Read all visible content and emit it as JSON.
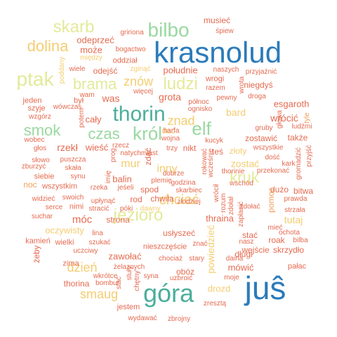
{
  "palette": {
    "blue": "#2b7bba",
    "teal": "#4cae9b",
    "green": "#9ad8a1",
    "yellow": "#e3ea9a",
    "gold": "#f4cd72",
    "orange": "#f1a05c",
    "red": "#e56a4f"
  },
  "words": [
    {
      "text": "krasnolud",
      "color": "blue"
    },
    {
      "text": "juŝ",
      "color": "blue"
    },
    {
      "text": "góra",
      "color": "teal"
    },
    {
      "text": "thorin",
      "color": "teal"
    },
    {
      "text": "bilbo",
      "color": "green"
    },
    {
      "text": "elf",
      "color": "green"
    },
    {
      "text": "król",
      "color": "green"
    },
    {
      "text": "czas",
      "color": "green"
    },
    {
      "text": "smok",
      "color": "green"
    },
    {
      "text": "skarb",
      "color": "yellow"
    },
    {
      "text": "ptak",
      "color": "yellow"
    },
    {
      "text": "brama",
      "color": "yellow"
    },
    {
      "text": "ludzi",
      "color": "yellow"
    },
    {
      "text": "jezioro",
      "color": "yellow"
    },
    {
      "text": "kruk",
      "color": "yellow"
    },
    {
      "text": "dolina",
      "color": "gold"
    },
    {
      "text": "znów",
      "color": "gold"
    },
    {
      "text": "chcieć",
      "color": "gold"
    },
    {
      "text": "znad",
      "color": "gold"
    },
    {
      "text": "mur",
      "color": "gold"
    },
    {
      "text": "inny",
      "color": "gold"
    },
    {
      "text": "dzień",
      "color": "gold"
    },
    {
      "text": "smaug",
      "color": "gold"
    },
    {
      "text": "bard",
      "color": "gold"
    },
    {
      "text": "zostać",
      "color": "gold"
    },
    {
      "text": "tutaj",
      "color": "gold"
    },
    {
      "text": "oczywisty",
      "color": "gold"
    },
    {
      "text": "złoty",
      "color": "gold"
    },
    {
      "text": "dawny",
      "color": "gold"
    },
    {
      "text": "powiedzieć",
      "color": "gold"
    },
    {
      "text": "dać",
      "color": "gold"
    },
    {
      "text": "musieć",
      "color": "red"
    },
    {
      "text": "śpiew",
      "color": "red"
    },
    {
      "text": "odeprzeć",
      "color": "red"
    },
    {
      "text": "gririona",
      "color": "red"
    },
    {
      "text": "może",
      "color": "red"
    },
    {
      "text": "bogactwo",
      "color": "red"
    },
    {
      "text": "między",
      "color": "gold"
    },
    {
      "text": "wiele",
      "color": "red"
    },
    {
      "text": "odejść",
      "color": "red"
    },
    {
      "text": "oddział",
      "color": "red"
    },
    {
      "text": "zginąć",
      "color": "gold"
    },
    {
      "text": "południe",
      "color": "red"
    },
    {
      "text": "naszych",
      "color": "red"
    },
    {
      "text": "przyjaźnić",
      "color": "red"
    },
    {
      "text": "wrogi",
      "color": "red"
    },
    {
      "text": "razem",
      "color": "red"
    },
    {
      "text": "niegdyś",
      "color": "red"
    },
    {
      "text": "droga",
      "color": "red"
    },
    {
      "text": "poddany",
      "color": "gold"
    },
    {
      "text": "wam",
      "color": "red"
    },
    {
      "text": "więcej",
      "color": "red"
    },
    {
      "text": "jeden",
      "color": "red"
    },
    {
      "text": "był",
      "color": "red"
    },
    {
      "text": "was",
      "color": "red"
    },
    {
      "text": "grota",
      "color": "red"
    },
    {
      "text": "północ",
      "color": "red"
    },
    {
      "text": "pewny",
      "color": "red"
    },
    {
      "text": "ognisko",
      "color": "red"
    },
    {
      "text": "esgaroth",
      "color": "red"
    },
    {
      "text": "szyje",
      "color": "red"
    },
    {
      "text": "wówczas",
      "color": "red"
    },
    {
      "text": "wzgórz",
      "color": "red"
    },
    {
      "text": "potem",
      "color": "red"
    },
    {
      "text": "cały",
      "color": "red"
    },
    {
      "text": "wrócić",
      "color": "red"
    },
    {
      "text": "gruby",
      "color": "red"
    },
    {
      "text": "ludźmi",
      "color": "red"
    },
    {
      "text": "harfa",
      "color": "red"
    },
    {
      "text": "kucyk",
      "color": "red"
    },
    {
      "text": "zostawić",
      "color": "red"
    },
    {
      "text": "także",
      "color": "red"
    },
    {
      "text": "tyle",
      "color": "orange"
    },
    {
      "text": "wobec",
      "color": "red"
    },
    {
      "text": "rzekł",
      "color": "red"
    },
    {
      "text": "wieść",
      "color": "red"
    },
    {
      "text": "wojna",
      "color": "red"
    },
    {
      "text": "nikt",
      "color": "red"
    },
    {
      "text": "teś",
      "color": "red"
    },
    {
      "text": "wszystkie",
      "color": "red"
    },
    {
      "text": "głos",
      "color": "red"
    },
    {
      "text": "natychmiast",
      "color": "red"
    },
    {
      "text": "trzy",
      "color": "red"
    },
    {
      "text": "dość",
      "color": "red"
    },
    {
      "text": "kark",
      "color": "red"
    },
    {
      "text": "słowo",
      "color": "red"
    },
    {
      "text": "puszcza",
      "color": "red"
    },
    {
      "text": "przekonać",
      "color": "red"
    },
    {
      "text": "zburzyć",
      "color": "red"
    },
    {
      "text": "skała",
      "color": "red"
    },
    {
      "text": "siebie",
      "color": "red"
    },
    {
      "text": "synu",
      "color": "red"
    },
    {
      "text": "dobrze",
      "color": "red"
    },
    {
      "text": "thorinie",
      "color": "red"
    },
    {
      "text": "noc",
      "color": "orange"
    },
    {
      "text": "wszystkim",
      "color": "red"
    },
    {
      "text": "rzeka",
      "color": "red"
    },
    {
      "text": "jeśeli",
      "color": "red"
    },
    {
      "text": "balin",
      "color": "red"
    },
    {
      "text": "spod",
      "color": "red"
    },
    {
      "text": "plemię",
      "color": "red"
    },
    {
      "text": "godzina",
      "color": "red"
    },
    {
      "text": "wschód",
      "color": "red"
    },
    {
      "text": "dużo",
      "color": "red"
    },
    {
      "text": "bitwa",
      "color": "red"
    },
    {
      "text": "widzieć",
      "color": "red"
    },
    {
      "text": "swoich",
      "color": "red"
    },
    {
      "text": "rod",
      "color": "red"
    },
    {
      "text": "chwila",
      "color": "red"
    },
    {
      "text": "złodziej",
      "color": "red"
    },
    {
      "text": "skarbiec",
      "color": "red"
    },
    {
      "text": "zdołać",
      "color": "red"
    },
    {
      "text": "prawda",
      "color": "red"
    },
    {
      "text": "serce",
      "color": "red"
    },
    {
      "text": "nimi",
      "color": "red"
    },
    {
      "text": "stracić",
      "color": "red"
    },
    {
      "text": "póki",
      "color": "red"
    },
    {
      "text": "suchar",
      "color": "red"
    },
    {
      "text": "móc",
      "color": "red"
    },
    {
      "text": "strona",
      "color": "red"
    },
    {
      "text": "thraina",
      "color": "red"
    },
    {
      "text": "pomoc",
      "color": "orange"
    },
    {
      "text": "strzała",
      "color": "red"
    },
    {
      "text": "ochota",
      "color": "red"
    },
    {
      "text": "lina",
      "color": "red"
    },
    {
      "text": "usłyszeć",
      "color": "red"
    },
    {
      "text": "mieć",
      "color": "red"
    },
    {
      "text": "stać",
      "color": "red"
    },
    {
      "text": "kamień",
      "color": "red"
    },
    {
      "text": "wielki",
      "color": "red"
    },
    {
      "text": "szukać",
      "color": "red"
    },
    {
      "text": "roak",
      "color": "red"
    },
    {
      "text": "bilba",
      "color": "red"
    },
    {
      "text": "uczciwy",
      "color": "red"
    },
    {
      "text": "nieszczęście",
      "color": "red"
    },
    {
      "text": "znać",
      "color": "red"
    },
    {
      "text": "nasz",
      "color": "red"
    },
    {
      "text": "wejście",
      "color": "red"
    },
    {
      "text": "skrzydło",
      "color": "red"
    },
    {
      "text": "zawołać",
      "color": "red"
    },
    {
      "text": "chociaż",
      "color": "red"
    },
    {
      "text": "stary",
      "color": "red"
    },
    {
      "text": "długi",
      "color": "red"
    },
    {
      "text": "zima",
      "color": "red"
    },
    {
      "text": "żelaznych",
      "color": "red"
    },
    {
      "text": "obóz",
      "color": "red"
    },
    {
      "text": "mówić",
      "color": "red"
    },
    {
      "text": "pałac",
      "color": "red"
    },
    {
      "text": "daina",
      "color": "red"
    },
    {
      "text": "wkrótce",
      "color": "red"
    },
    {
      "text": "syna",
      "color": "red"
    },
    {
      "text": "uzbroić",
      "color": "red"
    },
    {
      "text": "moje",
      "color": "red"
    },
    {
      "text": "thorina",
      "color": "red"
    },
    {
      "text": "bombur",
      "color": "red"
    },
    {
      "text": "drozd",
      "color": "gold"
    },
    {
      "text": "jestem",
      "color": "red"
    },
    {
      "text": "zresztą",
      "color": "red"
    },
    {
      "text": "wydawać",
      "color": "red"
    },
    {
      "text": "zbrojny",
      "color": "red"
    },
    {
      "text": "żeby",
      "color": "red"
    },
    {
      "text": "upłynąć",
      "color": "red"
    },
    {
      "text": "wcześnie",
      "color": "red"
    },
    {
      "text": "zdołał",
      "color": "red"
    },
    {
      "text": "rozum",
      "color": "red"
    },
    {
      "text": "głowa",
      "color": "red"
    },
    {
      "text": "gromadzić",
      "color": "red"
    },
    {
      "text": "przyjść",
      "color": "red"
    },
    {
      "text": "wrota",
      "color": "red"
    },
    {
      "text": "prog",
      "color": "red"
    },
    {
      "text": "rzecz",
      "color": "red"
    },
    {
      "text": "imię",
      "color": "red"
    },
    {
      "text": "stać",
      "color": "red"
    },
    {
      "text": "chętny",
      "color": "red"
    },
    {
      "text": "stuły",
      "color": "red"
    },
    {
      "text": "wrócił",
      "color": "red"
    },
    {
      "text": "zdać",
      "color": "red"
    },
    {
      "text": "rokować",
      "color": "red"
    },
    {
      "text": "zapłacić",
      "color": "red"
    }
  ]
}
